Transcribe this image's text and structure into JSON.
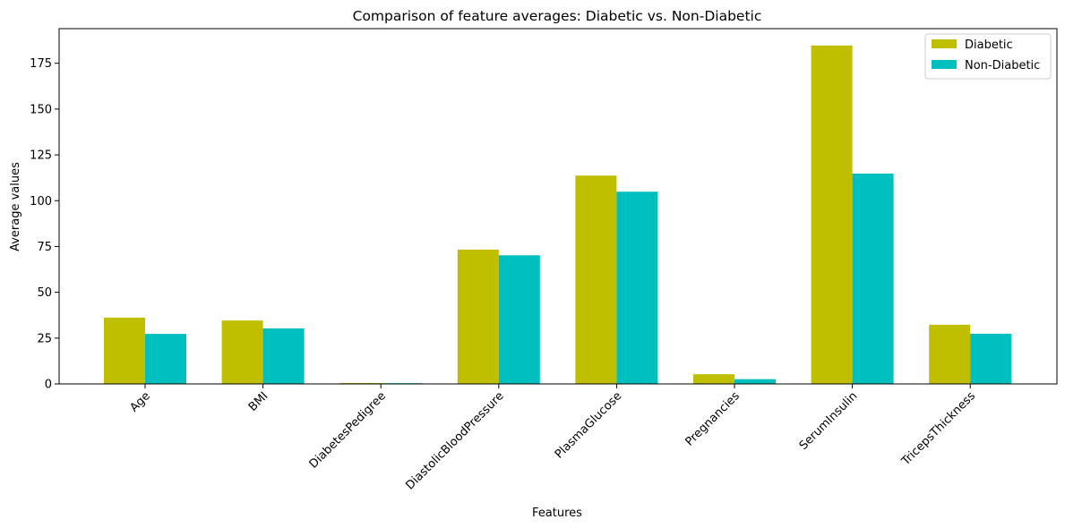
{
  "chart_data": {
    "type": "bar",
    "title": "Comparison of feature averages: Diabetic vs. Non-Diabetic",
    "xlabel": "Features",
    "ylabel": "Average values",
    "categories": [
      "Age",
      "BMI",
      "DiabetesPedigree",
      "DiastolicBloodPressure",
      "PlasmaGlucose",
      "Pregnancies",
      "SerumInsulin",
      "TricepsThickness"
    ],
    "series": [
      {
        "name": "Diabetic",
        "color": "#bfbf00",
        "values": [
          36.2,
          34.6,
          0.5,
          73.3,
          113.7,
          5.3,
          184.7,
          32.3
        ]
      },
      {
        "name": "Non-Diabetic",
        "color": "#00bfbf",
        "values": [
          27.3,
          30.3,
          0.4,
          70.2,
          104.9,
          2.6,
          114.8,
          27.4
        ]
      }
    ],
    "ylim": [
      0,
      193.9
    ],
    "yticks": [
      0,
      25,
      50,
      75,
      100,
      125,
      150,
      175
    ],
    "legend_position": "top-right",
    "grid": false
  }
}
